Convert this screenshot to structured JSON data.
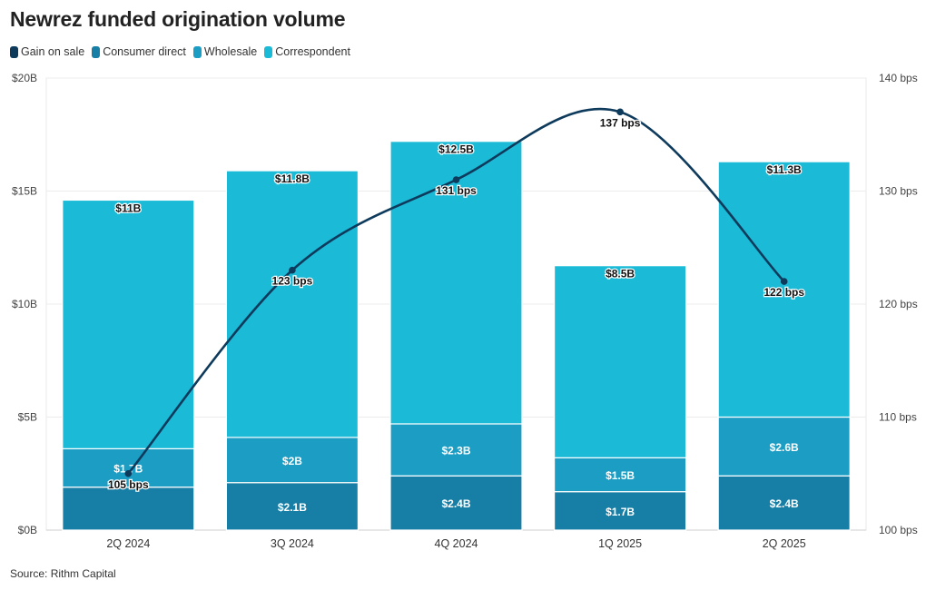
{
  "title": "Newrez funded origination volume",
  "source": "Source: Rithm Capital",
  "legend": [
    {
      "label": "Gain on sale",
      "color": "#0e3a5c"
    },
    {
      "label": "Consumer direct",
      "color": "#177ea5"
    },
    {
      "label": "Wholesale",
      "color": "#1b9dc4"
    },
    {
      "label": "Correspondent",
      "color": "#1bbbd8"
    }
  ],
  "chart_data": {
    "type": "bar",
    "stacked": true,
    "categories": [
      "2Q 2024",
      "3Q 2024",
      "4Q 2024",
      "1Q 2025",
      "2Q 2025"
    ],
    "series": [
      {
        "name": "Consumer direct",
        "color": "#177ea5",
        "values": [
          1.9,
          2.1,
          2.4,
          1.7,
          2.4
        ],
        "labels": [
          "",
          "$2.1B",
          "$2.4B",
          "$1.7B",
          "$2.4B"
        ]
      },
      {
        "name": "Wholesale",
        "color": "#1b9dc4",
        "values": [
          1.7,
          2.0,
          2.3,
          1.5,
          2.6
        ],
        "labels": [
          "$1.7B",
          "$2B",
          "$2.3B",
          "$1.5B",
          "$2.6B"
        ]
      },
      {
        "name": "Correspondent",
        "color": "#1bbbd8",
        "values": [
          11.0,
          11.8,
          12.5,
          8.5,
          11.3
        ],
        "labels": [
          "$11B",
          "$11.8B",
          "$12.5B",
          "$8.5B",
          "$11.3B"
        ]
      }
    ],
    "line_series": {
      "name": "Gain on sale",
      "color": "#0e3a5c",
      "axis": "right",
      "values": [
        105,
        123,
        131,
        137,
        122
      ],
      "labels": [
        "105 bps",
        "123 bps",
        "131 bps",
        "137 bps",
        "122 bps"
      ]
    },
    "y_left": {
      "min": 0,
      "max": 20,
      "ticks": [
        0,
        5,
        10,
        15,
        20
      ],
      "tick_labels": [
        "$0B",
        "$5B",
        "$10B",
        "$15B",
        "$20B"
      ]
    },
    "y_right": {
      "min": 100,
      "max": 140,
      "ticks": [
        100,
        110,
        120,
        130,
        140
      ],
      "tick_labels": [
        "100 bps",
        "110 bps",
        "120 bps",
        "130 bps",
        "140 bps"
      ]
    },
    "grid": true,
    "legend_position": "top-left"
  }
}
